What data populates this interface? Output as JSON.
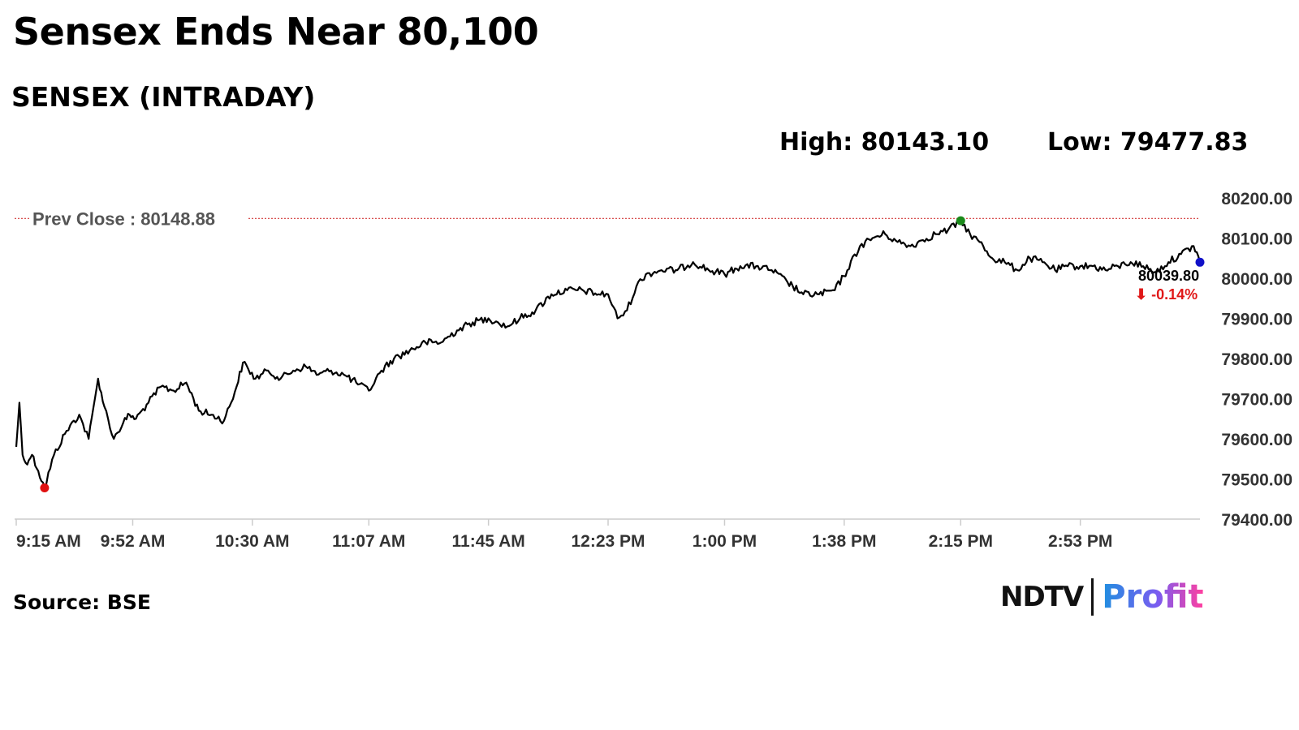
{
  "headline": "Sensex Ends Near 80,100",
  "chart_data": {
    "type": "line",
    "title": "SENSEX (INTRADAY)",
    "stats": {
      "high": "High: 80143.10",
      "low": "Low: 79477.83"
    },
    "prev_close": {
      "label": "Prev Close : 80148.88",
      "value": 80148.88
    },
    "last": {
      "value_label": "80039.80",
      "change_label": "⬇ -0.14%"
    },
    "ylim": [
      79400,
      80200
    ],
    "yticks": [
      "80200.00",
      "80100.00",
      "80000.00",
      "79900.00",
      "79800.00",
      "79700.00",
      "79600.00",
      "79500.00",
      "79400.00"
    ],
    "xlim": [
      0,
      376
    ],
    "xticks": [
      {
        "label": "9:15 AM",
        "t": 0
      },
      {
        "label": "9:52 AM",
        "t": 37
      },
      {
        "label": "10:30 AM",
        "t": 75
      },
      {
        "label": "11:07 AM",
        "t": 112
      },
      {
        "label": "11:45 AM",
        "t": 150
      },
      {
        "label": "12:23 PM",
        "t": 188
      },
      {
        "label": "1:00 PM",
        "t": 225
      },
      {
        "label": "1:38 PM",
        "t": 263
      },
      {
        "label": "2:15 PM",
        "t": 300
      },
      {
        "label": "2:53 PM",
        "t": 338
      }
    ],
    "x_unit": "minutes since 9:15 AM",
    "series": [
      {
        "color": "#000000",
        "x": [
          0,
          1,
          2,
          3,
          5,
          7,
          9,
          12,
          16,
          20,
          23,
          25,
          26,
          28,
          31,
          34,
          36,
          38,
          42,
          46,
          50,
          54,
          58,
          62,
          66,
          70,
          72,
          76,
          80,
          84,
          88,
          92,
          96,
          100,
          104,
          108,
          112,
          116,
          120,
          125,
          130,
          135,
          140,
          145,
          150,
          153,
          156,
          160,
          165,
          170,
          175,
          180,
          185,
          188,
          191,
          194,
          197,
          200,
          205,
          210,
          215,
          220,
          225,
          230,
          235,
          240,
          245,
          250,
          255,
          260,
          264,
          268,
          272,
          276,
          280,
          284,
          288,
          292,
          296,
          300,
          303,
          306,
          310,
          314,
          318,
          322,
          326,
          330,
          334,
          338,
          342,
          346,
          350,
          354,
          358,
          362,
          366,
          370,
          374,
          376
        ],
        "values": [
          79580,
          79690,
          79560,
          79540,
          79560,
          79520,
          79477.83,
          79560,
          79620,
          79660,
          79600,
          79700,
          79750,
          79680,
          79600,
          79640,
          79660,
          79650,
          79690,
          79730,
          79720,
          79740,
          79670,
          79660,
          79645,
          79730,
          79790,
          79750,
          79770,
          79750,
          79770,
          79780,
          79760,
          79770,
          79760,
          79740,
          79720,
          79770,
          79800,
          79820,
          79840,
          79840,
          79870,
          79890,
          79900,
          79890,
          79880,
          79900,
          79920,
          79960,
          79970,
          79970,
          79960,
          79960,
          79900,
          79920,
          79980,
          80010,
          80020,
          80020,
          80040,
          80020,
          80010,
          80030,
          80030,
          80020,
          79990,
          79960,
          79960,
          79970,
          80020,
          80080,
          80100,
          80110,
          80090,
          80080,
          80095,
          80110,
          80120,
          80143.1,
          80110,
          80090,
          80050,
          80040,
          80020,
          80050,
          80040,
          80020,
          80030,
          80030,
          80030,
          80020,
          80030,
          80040,
          80030,
          80015,
          80040,
          80060,
          80080,
          80039.8
        ]
      }
    ],
    "markers": [
      {
        "name": "low",
        "t": 9,
        "value": 79477.83,
        "color": "#e01010"
      },
      {
        "name": "high",
        "t": 300,
        "value": 80143.1,
        "color": "#1a8a1a"
      },
      {
        "name": "last",
        "t": 376,
        "value": 80039.8,
        "color": "#1010c8"
      }
    ],
    "colors": {
      "prev_close_line": "#d43a3a",
      "axis": "#cccccc"
    }
  },
  "source": "Source: BSE",
  "logo": {
    "left": "NDTV",
    "right": "Profit"
  }
}
